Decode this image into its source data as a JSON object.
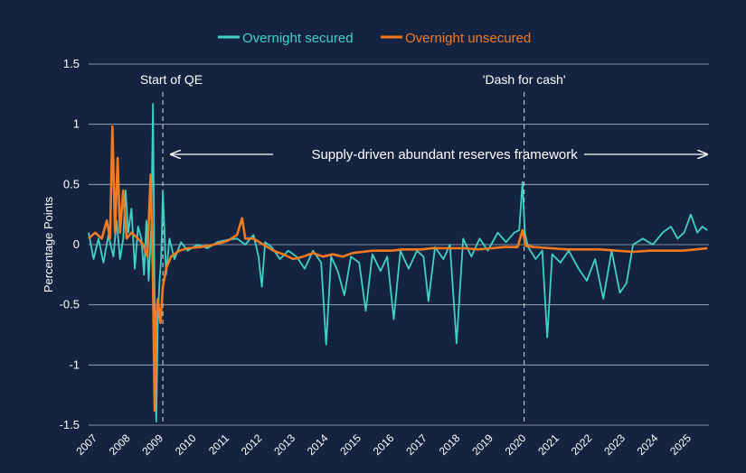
{
  "chart_data": {
    "type": "line",
    "legend": {
      "placement": "top-center"
    },
    "ylabel": "Percentage Points",
    "xlabel": "",
    "ylim": [
      -1.5,
      1.5
    ],
    "xlim": [
      2007,
      2025.8
    ],
    "grid": "horizontal",
    "y_ticks": [
      {
        "value": 1.5,
        "label": "1.5"
      },
      {
        "value": 1,
        "label": "1"
      },
      {
        "value": 0.5,
        "label": "0.5"
      },
      {
        "value": 0,
        "label": "0"
      },
      {
        "value": -0.5,
        "label": "-0.5"
      },
      {
        "value": -1,
        "label": "-1"
      },
      {
        "value": -1.5,
        "label": "-1.5"
      }
    ],
    "x_ticks": [
      "2007",
      "2008",
      "2009",
      "2010",
      "2011",
      "2012",
      "2013",
      "2014",
      "2015",
      "2016",
      "2017",
      "2018",
      "2019",
      "2020",
      "2021",
      "2022",
      "2023",
      "2024",
      "2025"
    ],
    "series": [
      {
        "name": "Overnight secured",
        "color": "#3fd1c7",
        "points": [
          [
            2007.0,
            0.1
          ],
          [
            2007.15,
            -0.12
          ],
          [
            2007.3,
            0.05
          ],
          [
            2007.45,
            -0.15
          ],
          [
            2007.6,
            0.08
          ],
          [
            2007.75,
            -0.1
          ],
          [
            2007.85,
            0.2
          ],
          [
            2007.95,
            -0.12
          ],
          [
            2008.05,
            0.05
          ],
          [
            2008.12,
            0.45
          ],
          [
            2008.2,
            0.1
          ],
          [
            2008.3,
            0.3
          ],
          [
            2008.4,
            -0.2
          ],
          [
            2008.5,
            0.15
          ],
          [
            2008.6,
            0.05
          ],
          [
            2008.68,
            -0.25
          ],
          [
            2008.75,
            0.2
          ],
          [
            2008.82,
            -0.3
          ],
          [
            2008.9,
            0.15
          ],
          [
            2008.95,
            1.17
          ],
          [
            2009.0,
            -0.5
          ],
          [
            2009.05,
            -1.47
          ],
          [
            2009.1,
            -0.6
          ],
          [
            2009.15,
            -0.3
          ],
          [
            2009.2,
            -0.1
          ],
          [
            2009.25,
            0.44
          ],
          [
            2009.3,
            0.1
          ],
          [
            2009.35,
            -0.25
          ],
          [
            2009.45,
            0.05
          ],
          [
            2009.6,
            -0.12
          ],
          [
            2009.8,
            0.02
          ],
          [
            2010.0,
            -0.05
          ],
          [
            2010.3,
            0.0
          ],
          [
            2010.6,
            -0.03
          ],
          [
            2010.9,
            0.02
          ],
          [
            2011.2,
            0.04
          ],
          [
            2011.5,
            0.05
          ],
          [
            2011.75,
            0.0
          ],
          [
            2012.0,
            0.08
          ],
          [
            2012.15,
            -0.1
          ],
          [
            2012.25,
            -0.35
          ],
          [
            2012.35,
            0.02
          ],
          [
            2012.55,
            -0.02
          ],
          [
            2012.8,
            -0.12
          ],
          [
            2013.05,
            -0.05
          ],
          [
            2013.3,
            -0.1
          ],
          [
            2013.55,
            -0.2
          ],
          [
            2013.8,
            -0.05
          ],
          [
            2014.05,
            -0.15
          ],
          [
            2014.2,
            -0.83
          ],
          [
            2014.35,
            -0.1
          ],
          [
            2014.55,
            -0.22
          ],
          [
            2014.75,
            -0.42
          ],
          [
            2014.95,
            -0.1
          ],
          [
            2015.2,
            -0.15
          ],
          [
            2015.4,
            -0.55
          ],
          [
            2015.6,
            -0.08
          ],
          [
            2015.85,
            -0.22
          ],
          [
            2016.05,
            -0.1
          ],
          [
            2016.25,
            -0.62
          ],
          [
            2016.45,
            -0.05
          ],
          [
            2016.7,
            -0.2
          ],
          [
            2016.95,
            -0.05
          ],
          [
            2017.15,
            -0.1
          ],
          [
            2017.3,
            -0.47
          ],
          [
            2017.5,
            -0.02
          ],
          [
            2017.75,
            -0.12
          ],
          [
            2017.95,
            0.0
          ],
          [
            2018.15,
            -0.82
          ],
          [
            2018.35,
            0.05
          ],
          [
            2018.6,
            -0.1
          ],
          [
            2018.85,
            0.05
          ],
          [
            2019.1,
            -0.05
          ],
          [
            2019.4,
            0.1
          ],
          [
            2019.65,
            0.02
          ],
          [
            2019.9,
            0.1
          ],
          [
            2020.05,
            0.12
          ],
          [
            2020.15,
            0.52
          ],
          [
            2020.22,
            0.1
          ],
          [
            2020.32,
            -0.02
          ],
          [
            2020.55,
            -0.12
          ],
          [
            2020.75,
            -0.05
          ],
          [
            2020.9,
            -0.77
          ],
          [
            2021.05,
            -0.08
          ],
          [
            2021.3,
            -0.15
          ],
          [
            2021.55,
            -0.05
          ],
          [
            2021.85,
            -0.2
          ],
          [
            2022.1,
            -0.3
          ],
          [
            2022.35,
            -0.12
          ],
          [
            2022.6,
            -0.45
          ],
          [
            2022.85,
            -0.05
          ],
          [
            2023.1,
            -0.4
          ],
          [
            2023.3,
            -0.32
          ],
          [
            2023.5,
            0.0
          ],
          [
            2023.8,
            0.05
          ],
          [
            2024.1,
            0.0
          ],
          [
            2024.4,
            0.1
          ],
          [
            2024.65,
            0.15
          ],
          [
            2024.85,
            0.05
          ],
          [
            2025.05,
            0.1
          ],
          [
            2025.25,
            0.25
          ],
          [
            2025.45,
            0.1
          ],
          [
            2025.6,
            0.15
          ],
          [
            2025.75,
            0.12
          ]
        ]
      },
      {
        "name": "Overnight unsecured",
        "color": "#f47a1f",
        "points": [
          [
            2007.0,
            0.05
          ],
          [
            2007.2,
            0.1
          ],
          [
            2007.4,
            0.05
          ],
          [
            2007.55,
            0.2
          ],
          [
            2007.65,
            0.05
          ],
          [
            2007.72,
            0.98
          ],
          [
            2007.8,
            0.1
          ],
          [
            2007.88,
            0.72
          ],
          [
            2007.95,
            0.1
          ],
          [
            2008.05,
            0.45
          ],
          [
            2008.15,
            0.05
          ],
          [
            2008.3,
            0.1
          ],
          [
            2008.5,
            0.05
          ],
          [
            2008.65,
            0.0
          ],
          [
            2008.78,
            -0.1
          ],
          [
            2008.88,
            0.58
          ],
          [
            2008.95,
            -0.3
          ],
          [
            2009.0,
            -1.38
          ],
          [
            2009.05,
            -0.6
          ],
          [
            2009.1,
            -0.45
          ],
          [
            2009.18,
            -0.65
          ],
          [
            2009.25,
            -0.35
          ],
          [
            2009.35,
            -0.2
          ],
          [
            2009.5,
            -0.1
          ],
          [
            2009.75,
            -0.05
          ],
          [
            2010.0,
            -0.03
          ],
          [
            2010.4,
            -0.02
          ],
          [
            2010.8,
            0.0
          ],
          [
            2011.2,
            0.03
          ],
          [
            2011.5,
            0.08
          ],
          [
            2011.65,
            0.22
          ],
          [
            2011.75,
            0.05
          ],
          [
            2012.0,
            0.05
          ],
          [
            2012.3,
            0.0
          ],
          [
            2012.6,
            -0.05
          ],
          [
            2012.9,
            -0.08
          ],
          [
            2013.2,
            -0.12
          ],
          [
            2013.5,
            -0.1
          ],
          [
            2013.8,
            -0.07
          ],
          [
            2014.1,
            -0.1
          ],
          [
            2014.4,
            -0.08
          ],
          [
            2014.7,
            -0.1
          ],
          [
            2015.0,
            -0.07
          ],
          [
            2015.3,
            -0.06
          ],
          [
            2015.6,
            -0.05
          ],
          [
            2015.9,
            -0.05
          ],
          [
            2016.2,
            -0.05
          ],
          [
            2016.5,
            -0.04
          ],
          [
            2016.8,
            -0.04
          ],
          [
            2017.1,
            -0.04
          ],
          [
            2017.4,
            -0.03
          ],
          [
            2017.7,
            -0.03
          ],
          [
            2018.0,
            -0.03
          ],
          [
            2018.4,
            -0.03
          ],
          [
            2018.8,
            -0.04
          ],
          [
            2019.2,
            -0.03
          ],
          [
            2019.6,
            -0.02
          ],
          [
            2020.0,
            -0.02
          ],
          [
            2020.15,
            0.12
          ],
          [
            2020.25,
            -0.01
          ],
          [
            2020.5,
            -0.02
          ],
          [
            2021.0,
            -0.03
          ],
          [
            2021.5,
            -0.04
          ],
          [
            2022.0,
            -0.04
          ],
          [
            2022.5,
            -0.04
          ],
          [
            2023.0,
            -0.05
          ],
          [
            2023.5,
            -0.06
          ],
          [
            2024.0,
            -0.05
          ],
          [
            2024.5,
            -0.05
          ],
          [
            2025.0,
            -0.05
          ],
          [
            2025.4,
            -0.04
          ],
          [
            2025.75,
            -0.03
          ]
        ]
      }
    ],
    "vertical_markers": [
      {
        "x": 2009.25,
        "label": "Start of QE"
      },
      {
        "x": 2020.2,
        "label": "'Dash for cash'"
      }
    ],
    "annotations": [
      {
        "text": "Supply-driven abundant reserves framework",
        "arrow": "double",
        "x_from": 2009.5,
        "x_to": 2025.8,
        "y": 0.75
      }
    ]
  }
}
